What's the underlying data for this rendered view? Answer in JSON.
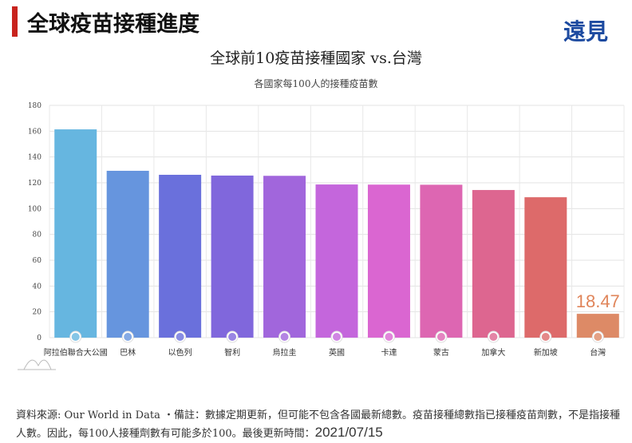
{
  "header": {
    "title": "全球疫苗接種進度",
    "logo": "遠見"
  },
  "chart_data": {
    "type": "bar",
    "title": "全球前10疫苗接種國家 vs.台灣",
    "subtitle": "各國家每100人的接種疫苗數",
    "categories": [
      "阿拉伯聯合大公國",
      "巴林",
      "以色列",
      "智利",
      "烏拉圭",
      "英國",
      "卡達",
      "蒙古",
      "加拿大",
      "新加坡",
      "台灣"
    ],
    "values": [
      161.4,
      129.3,
      126.2,
      125.6,
      125.4,
      118.7,
      118.6,
      118.5,
      114.4,
      108.8,
      18.47
    ],
    "colors": [
      "#66b6e0",
      "#6695de",
      "#6a70dc",
      "#8067dc",
      "#a166dc",
      "#c466dc",
      "#da66d1",
      "#dd66b2",
      "#dd6690",
      "#dd6a6a",
      "#dd8a66"
    ],
    "flags": [
      "uae-flag",
      "bahrain-flag",
      "israel-flag",
      "chile-flag",
      "uruguay-flag",
      "uk-flag",
      "qatar-flag",
      "mongolia-flag",
      "canada-flag",
      "singapore-flag",
      "taiwan-flag"
    ],
    "data_labels": [
      {
        "index": 10,
        "text": "18.47",
        "color": "#e0855a"
      }
    ],
    "ylim": [
      0,
      180
    ],
    "yticks": [
      "0",
      "20",
      "40",
      "60",
      "80",
      "100",
      "120",
      "140",
      "160",
      "180"
    ],
    "grid": true
  },
  "footer": {
    "text": "資料來源: Our World in Data ・備註：數據定期更新，但可能不包含各國最新總數。疫苗接種總數指已接種疫苗劑數，不是指接種人數。因此，每100人接種劑數有可能多於100。最後更新時間：",
    "date": "2021/07/15"
  }
}
